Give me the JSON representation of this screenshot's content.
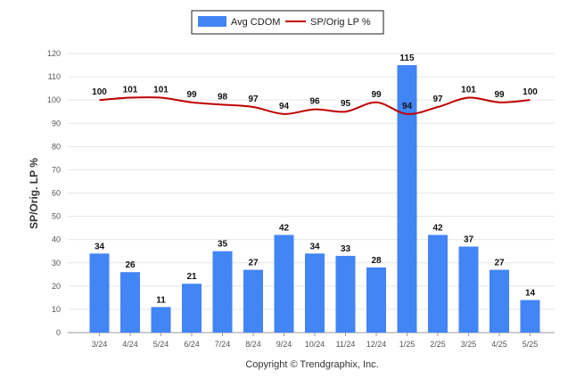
{
  "chart_data": {
    "type": "bar",
    "categories": [
      "3/24",
      "4/24",
      "5/24",
      "6/24",
      "7/24",
      "8/24",
      "9/24",
      "10/24",
      "11/24",
      "12/24",
      "1/25",
      "2/25",
      "3/25",
      "4/25",
      "5/25"
    ],
    "series": [
      {
        "name": "Avg CDOM",
        "type": "bar",
        "color": "#4285f4",
        "values": [
          34,
          26,
          11,
          21,
          35,
          27,
          42,
          34,
          33,
          28,
          115,
          42,
          37,
          27,
          14
        ]
      },
      {
        "name": "SP/Orig LP %",
        "type": "line",
        "color": "#c00000",
        "values": [
          100,
          101,
          101,
          99,
          98,
          97,
          94,
          96,
          95,
          99,
          94,
          97,
          101,
          99,
          100
        ]
      }
    ],
    "ylabel": "SP/Orig. LP %",
    "ylim": [
      0,
      120
    ],
    "yticks": [
      0,
      10,
      20,
      30,
      40,
      50,
      60,
      70,
      80,
      90,
      100,
      110,
      120
    ],
    "grid": true,
    "legend_position": "top-center"
  },
  "footer": "Copyright © Trendgraphix, Inc."
}
